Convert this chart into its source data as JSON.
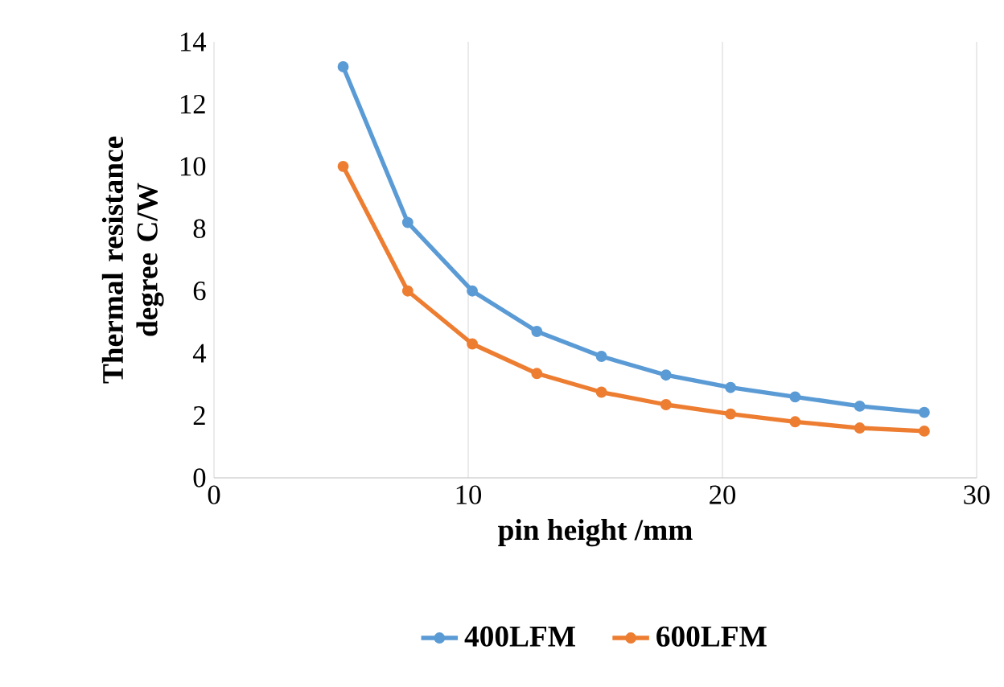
{
  "chart_data": {
    "type": "line",
    "xlabel": "pin height /mm",
    "ylabel": "Thermal resistance degree C/W",
    "x": [
      5.08,
      7.62,
      10.16,
      12.7,
      15.24,
      17.78,
      20.32,
      22.86,
      25.4,
      27.94
    ],
    "series": [
      {
        "name": "400LFM",
        "color": "#5b9bd5",
        "values": [
          13.2,
          8.2,
          6.0,
          4.7,
          3.9,
          3.3,
          2.9,
          2.6,
          2.3,
          2.1
        ]
      },
      {
        "name": "600LFM",
        "color": "#ed7d31",
        "values": [
          10.0,
          6.0,
          4.3,
          3.35,
          2.75,
          2.35,
          2.05,
          1.8,
          1.6,
          1.5
        ]
      }
    ],
    "xlim": [
      0,
      30
    ],
    "xticks": [
      0,
      10,
      20,
      30
    ],
    "ylim": [
      0,
      14
    ],
    "yticks": [
      0,
      2,
      4,
      6,
      8,
      10,
      12,
      14
    ],
    "grid": "x",
    "legend": "bottom",
    "marker": "circle",
    "line_style": "solid"
  }
}
